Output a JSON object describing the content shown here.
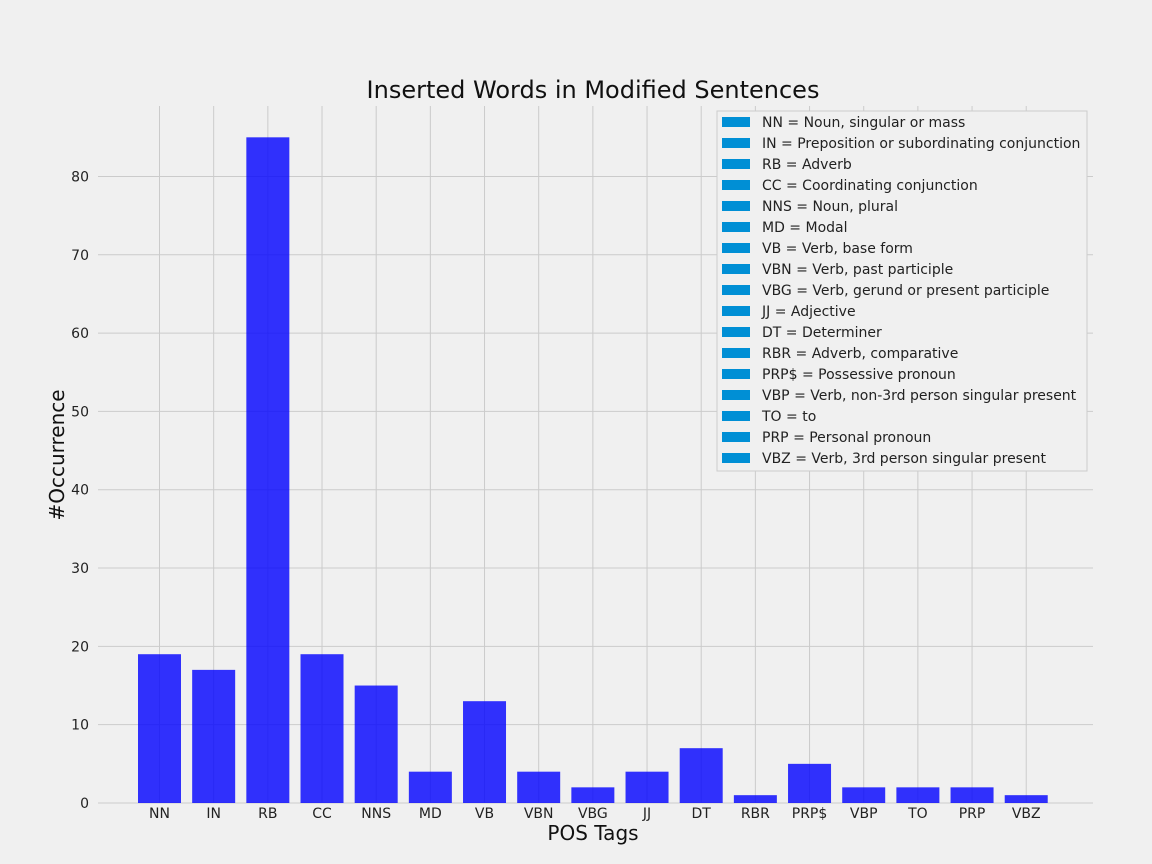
{
  "chart_data": {
    "type": "bar",
    "title": "Inserted Words in Modified Sentences",
    "xlabel": "POS Tags",
    "ylabel": "#Occurrence",
    "categories": [
      "NN",
      "IN",
      "RB",
      "CC",
      "NNS",
      "MD",
      "VB",
      "VBN",
      "VBG",
      "JJ",
      "DT",
      "RBR",
      "PRP$",
      "VBP",
      "TO",
      "PRP",
      "VBZ"
    ],
    "values": [
      19,
      17,
      85,
      19,
      15,
      4,
      13,
      4,
      2,
      4,
      7,
      1,
      5,
      2,
      2,
      2,
      1
    ],
    "ylim": [
      0,
      89
    ],
    "yticks": [
      0,
      10,
      20,
      30,
      40,
      50,
      60,
      70,
      80
    ],
    "grid": true,
    "bar_color": "#0000ff",
    "bar_opacity": 0.8,
    "legend_swatch_color": "#008fd5",
    "legend_position": "top-right",
    "legend": [
      "NN = Noun, singular or mass",
      "IN = Preposition or subordinating conjunction",
      "RB = Adverb",
      "CC = Coordinating conjunction",
      "NNS = Noun, plural",
      "MD = Modal",
      "VB = Verb, base form",
      "VBN = Verb, past participle",
      "VBG = Verb, gerund or present participle",
      "JJ = Adjective",
      "DT = Determiner",
      "RBR = Adverb, comparative",
      "PRP$ = Possessive pronoun",
      "VBP = Verb, non-3rd person singular present",
      "TO = to",
      "PRP = Personal pronoun",
      "VBZ = Verb, 3rd person singular present"
    ]
  }
}
